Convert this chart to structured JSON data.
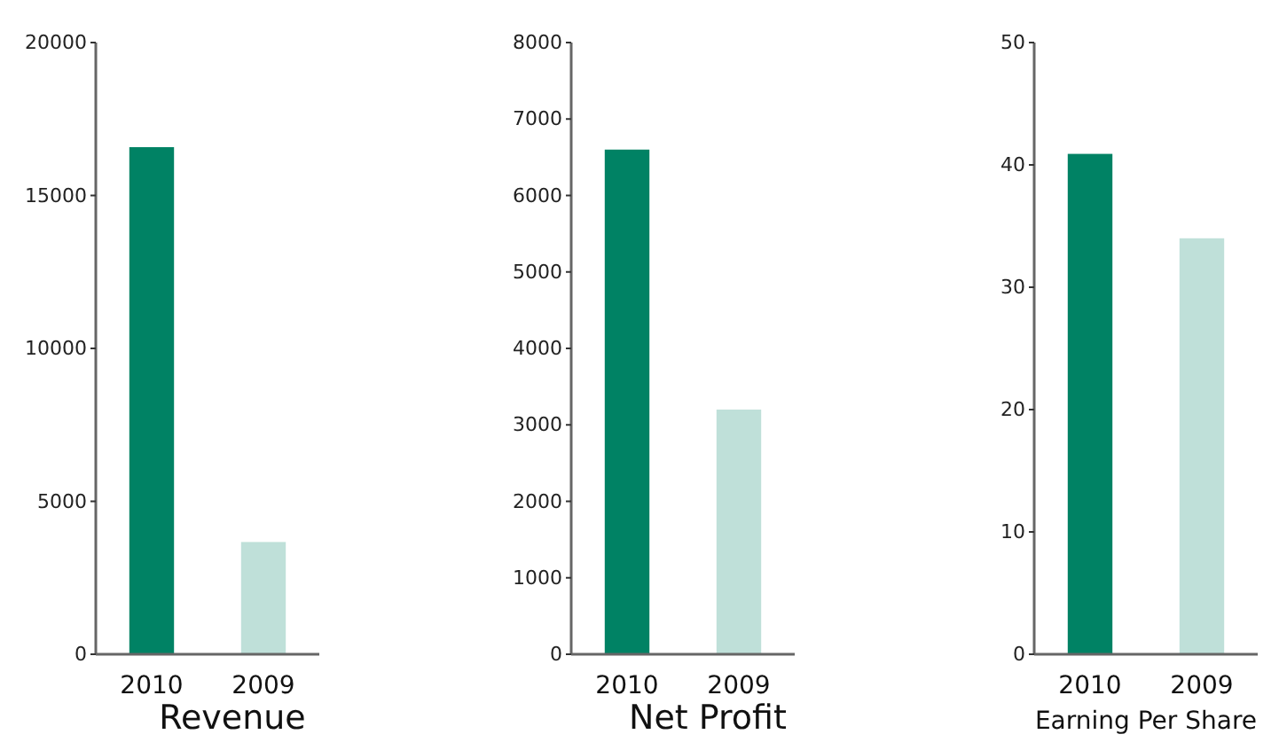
{
  "chart_data": [
    {
      "type": "bar",
      "xlabel": "Revenue",
      "categories": [
        "2010",
        "2009"
      ],
      "values": [
        16580,
        3670
      ],
      "colors": [
        "#008264",
        "#bfe0d9"
      ],
      "ylim": [
        0,
        20000
      ],
      "yticks": [
        0,
        5000,
        10000,
        15000,
        20000
      ]
    },
    {
      "type": "bar",
      "xlabel": "Net Profit",
      "categories": [
        "2010",
        "2009"
      ],
      "values": [
        6600,
        3200
      ],
      "colors": [
        "#008264",
        "#bfe0d9"
      ],
      "ylim": [
        0,
        8000
      ],
      "yticks": [
        0,
        1000,
        2000,
        3000,
        4000,
        5000,
        6000,
        7000,
        8000
      ]
    },
    {
      "type": "bar",
      "xlabel": "Earning Per Share",
      "categories": [
        "2010",
        "2009"
      ],
      "values": [
        40.9,
        34.0
      ],
      "colors": [
        "#008264",
        "#bfe0d9"
      ],
      "ylim": [
        0,
        50
      ],
      "yticks": [
        0,
        10,
        20,
        30,
        40,
        50
      ]
    }
  ]
}
